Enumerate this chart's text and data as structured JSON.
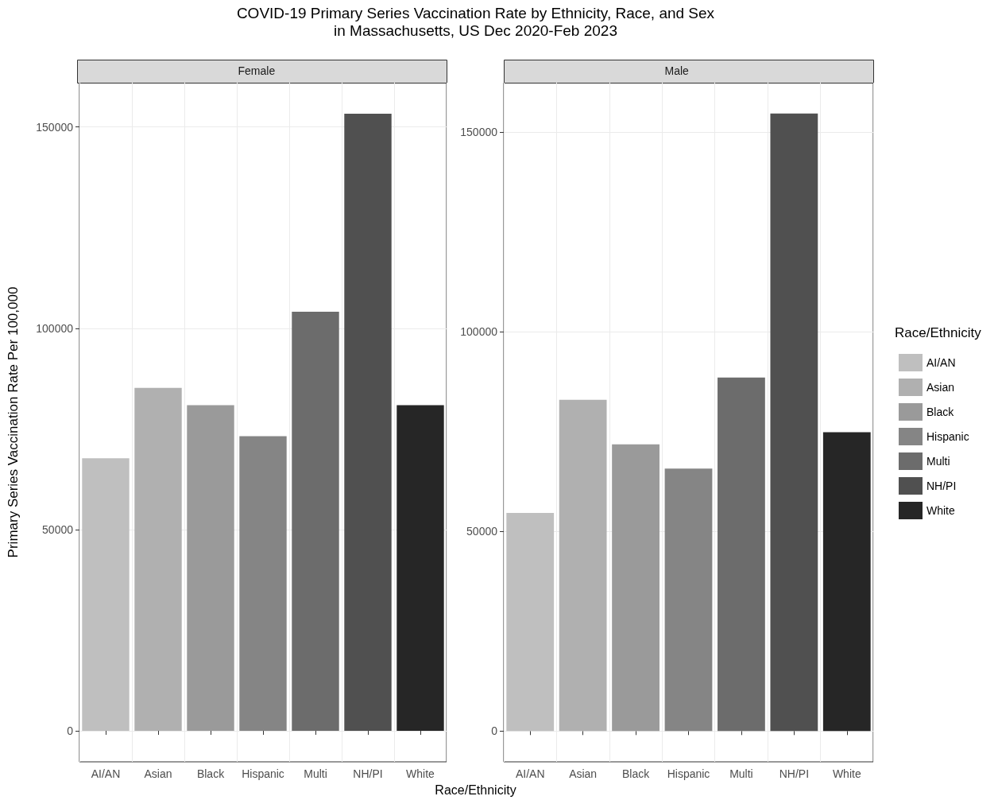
{
  "chart_data": [
    {
      "type": "bar",
      "title": "COVID-19 Primary Series Vaccination Rate by Ethnicity, Race, and Sex\nin Massachusetts, US Dec 2020-Feb 2023",
      "subtitle": "Female",
      "xlabel": "Race/Ethnicity",
      "ylabel": "Primary Series Vaccination Rate Per 100,000",
      "categories": [
        "AI/AN",
        "Asian",
        "Black",
        "Hispanic",
        "Multi",
        "NH/PI",
        "White"
      ],
      "stacked": true,
      "series": [
        {
          "color": "#bfbfbf",
          "values": [
            67700,
            null,
            null,
            null,
            null,
            null,
            null
          ]
        },
        {
          "color": "#b0b0b0",
          "values": [
            null,
            85200,
            null,
            null,
            null,
            null,
            null
          ]
        },
        {
          "color": "#9a9a9a",
          "values": [
            null,
            null,
            80900,
            null,
            null,
            null,
            null
          ]
        },
        {
          "color": "#858585",
          "values": [
            null,
            null,
            null,
            73200,
            null,
            null,
            null
          ]
        },
        {
          "color": "#6c6c6c",
          "values": [
            null,
            null,
            null,
            null,
            104100,
            null,
            null
          ]
        },
        {
          "color": "#505050",
          "values": [
            null,
            null,
            null,
            null,
            null,
            153300,
            null
          ]
        },
        {
          "color": "#262626",
          "values": [
            null,
            null,
            null,
            null,
            null,
            null,
            80900
          ]
        }
      ],
      "ylim": [
        -7700,
        161000
      ],
      "yticks": [
        0,
        50000,
        100000,
        150000
      ],
      "grid": true
    },
    {
      "type": "bar",
      "subtitle": "Male",
      "categories": [
        "AI/AN",
        "Asian",
        "Black",
        "Hispanic",
        "Multi",
        "NH/PI",
        "White"
      ],
      "stacked": true,
      "series": [
        {
          "name": "AI/AN",
          "color": "#bfbfbf",
          "values": [
            54600,
            null,
            null,
            null,
            null,
            null,
            null
          ]
        },
        {
          "name": "Asian",
          "color": "#b0b0b0",
          "values": [
            null,
            82900,
            null,
            null,
            null,
            null,
            null
          ]
        },
        {
          "name": "Black",
          "color": "#9a9a9a",
          "values": [
            null,
            null,
            71800,
            null,
            null,
            null,
            null
          ]
        },
        {
          "name": "Hispanic",
          "color": "#858585",
          "values": [
            null,
            null,
            null,
            65700,
            null,
            null,
            null
          ]
        },
        {
          "name": "Multi",
          "color": "#6c6c6c",
          "values": [
            null,
            null,
            null,
            null,
            88500,
            null,
            null
          ]
        },
        {
          "name": "NH/PI",
          "color": "#505050",
          "values": [
            null,
            null,
            null,
            null,
            null,
            154600,
            null
          ]
        },
        {
          "name": "White",
          "color": "#262626",
          "values": [
            null,
            null,
            null,
            null,
            null,
            null,
            74800
          ]
        }
      ],
      "ylim": [
        -7700,
        162300
      ],
      "yticks": [
        0,
        50000,
        100000,
        150000
      ],
      "grid": true,
      "legend": "right",
      "legend_title": "Race/Ethnicity"
    }
  ]
}
